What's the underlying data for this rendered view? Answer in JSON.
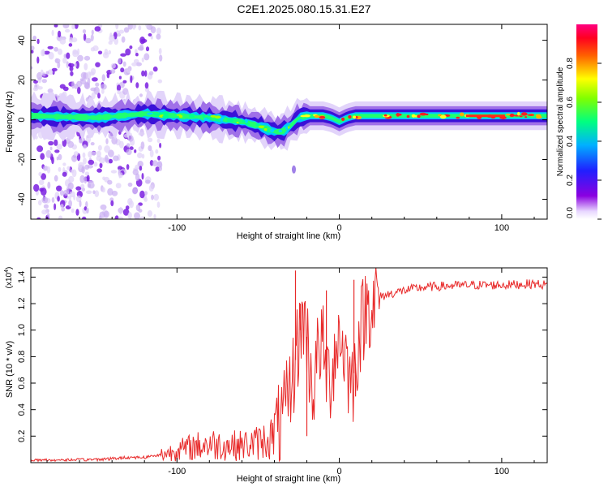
{
  "title": "C2E1.2025.080.15.31.E27",
  "chart_data": [
    {
      "type": "heatmap",
      "name": "spectrogram",
      "xlabel": "Height of straight line (km)",
      "ylabel": "Frequency (Hz)",
      "xlim": [
        -190,
        128
      ],
      "ylim": [
        -50,
        48
      ],
      "xticks": [
        -100,
        0,
        100
      ],
      "xtick_labels": [
        "-100",
        "0",
        "100"
      ],
      "yticks": [
        -40,
        -20,
        0,
        20,
        40
      ],
      "ytick_labels": [
        "-40",
        "-20",
        "0",
        "20",
        "40"
      ],
      "colorbar": {
        "label": "Normalized spectral amplitude",
        "range": [
          0,
          1
        ],
        "ticks": [
          0.0,
          0.2,
          0.4,
          0.6,
          0.8
        ],
        "tick_labels": [
          "0.0",
          "0.2",
          "0.4",
          "0.6",
          "0.8"
        ],
        "colors": [
          "#ffffff",
          "#9400d3",
          "#3030ff",
          "#00d0ff",
          "#00ff80",
          "#80ff00",
          "#ffff00",
          "#ff8000",
          "#ff0000",
          "#ff0080"
        ]
      },
      "ridge": {
        "x": [
          -190,
          -150,
          -120,
          -100,
          -80,
          -60,
          -50,
          -40,
          -35,
          -30,
          -25,
          -20,
          -10,
          -5,
          0,
          5,
          10,
          20,
          40,
          60,
          80,
          100,
          110,
          120,
          128
        ],
        "y": [
          2,
          1,
          3,
          2,
          1,
          -1,
          -3,
          -6,
          -6,
          -3,
          1,
          2,
          2,
          1,
          -1,
          1,
          2,
          2,
          2,
          2,
          2,
          2,
          2,
          2,
          2
        ]
      },
      "noise_region_x": [
        -190,
        -110
      ]
    },
    {
      "type": "line",
      "name": "snr",
      "xlabel": "Height of straight line (km)",
      "ylabel": "SNR (10 * v/v)",
      "multiplier_label": "(x10",
      "multiplier_exp": "4",
      "xlim": [
        -190,
        128
      ],
      "ylim": [
        0,
        1.47
      ],
      "xticks": [
        -100,
        0,
        100
      ],
      "xtick_labels": [
        "-100",
        "0",
        "100"
      ],
      "yticks": [
        0.2,
        0.4,
        0.6,
        0.8,
        1.0,
        1.2,
        1.4
      ],
      "ytick_labels": [
        "0.2",
        "0.4",
        "0.6",
        "0.8",
        "1.0",
        "1.2",
        "1.4"
      ],
      "series_color": "#e82a2a",
      "envelope": {
        "x": [
          -190,
          -160,
          -140,
          -130,
          -120,
          -110,
          -100,
          -90,
          -80,
          -70,
          -60,
          -50,
          -40,
          -35,
          -30,
          -28,
          -26,
          -24,
          -22,
          -20,
          -18,
          -16,
          -14,
          -12,
          -10,
          -8,
          -6,
          -4,
          -2,
          0,
          2,
          4,
          6,
          8,
          10,
          12,
          14,
          16,
          18,
          20,
          25,
          30,
          40,
          50,
          60,
          80,
          100,
          120,
          128
        ],
        "y": [
          0.02,
          0.02,
          0.03,
          0.04,
          0.04,
          0.06,
          0.09,
          0.12,
          0.14,
          0.13,
          0.13,
          0.15,
          0.2,
          0.3,
          0.55,
          0.7,
          0.85,
          1.0,
          1.1,
          0.95,
          0.7,
          0.55,
          0.75,
          0.9,
          0.85,
          0.7,
          0.6,
          0.75,
          0.9,
          0.95,
          0.9,
          0.8,
          0.65,
          0.6,
          0.75,
          0.95,
          1.05,
          1.15,
          1.2,
          1.22,
          1.25,
          1.27,
          1.3,
          1.32,
          1.33,
          1.34,
          1.34,
          1.35,
          1.34
        ]
      },
      "spikes": [
        {
          "x": -27,
          "y": 1.45
        },
        {
          "x": -24,
          "y": 1.2
        },
        {
          "x": -20,
          "y": 0.2
        },
        {
          "x": -8,
          "y": 1.3
        },
        {
          "x": 9,
          "y": 1.38
        },
        {
          "x": 10,
          "y": 0.5
        }
      ]
    }
  ]
}
